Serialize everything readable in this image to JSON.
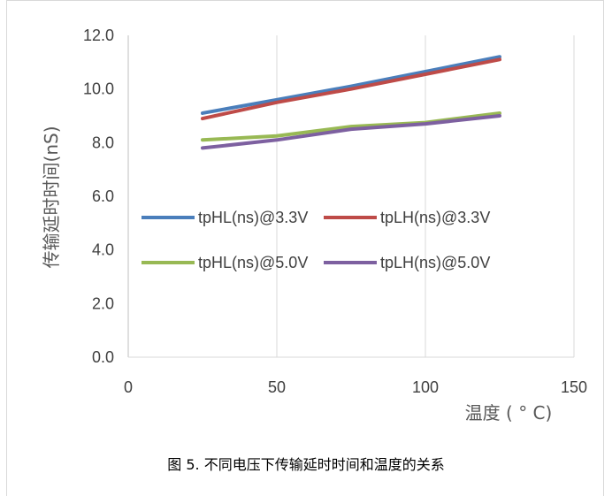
{
  "caption": "图 5. 不同电压下传输延时时间和温度的关系",
  "chart_data": {
    "type": "line",
    "title": "",
    "xlabel": "温度 ( ° C)",
    "ylabel": "传输延时时间(nS)",
    "xlim": [
      0,
      150
    ],
    "ylim": [
      0,
      12
    ],
    "xticks": [
      0,
      50,
      100,
      150
    ],
    "xtick_labels": [
      "0",
      "50",
      "100",
      "150"
    ],
    "yticks": [
      0,
      2,
      4,
      6,
      8,
      10,
      12
    ],
    "ytick_labels": [
      "0.0",
      "2.0",
      "4.0",
      "6.0",
      "8.0",
      "10.0",
      "12.0"
    ],
    "grid": "vertical",
    "legend_placement": "inside-left",
    "series": [
      {
        "name": "tpHL(ns)@3.3V",
        "color": "#4a7ebb",
        "x": [
          25,
          50,
          75,
          100,
          125
        ],
        "y": [
          9.1,
          9.6,
          10.1,
          10.65,
          11.2
        ]
      },
      {
        "name": "tpLH(ns)@3.3V",
        "color": "#be4b48",
        "x": [
          25,
          50,
          75,
          100,
          125
        ],
        "y": [
          8.9,
          9.5,
          10.0,
          10.55,
          11.1
        ]
      },
      {
        "name": "tpHL(ns)@5.0V",
        "color": "#98b954",
        "x": [
          25,
          50,
          75,
          100,
          125
        ],
        "y": [
          8.1,
          8.25,
          8.6,
          8.75,
          9.1
        ]
      },
      {
        "name": "tpLH(ns)@5.0V",
        "color": "#7d60a0",
        "x": [
          25,
          50,
          75,
          100,
          125
        ],
        "y": [
          7.8,
          8.1,
          8.5,
          8.7,
          9.0
        ]
      }
    ]
  }
}
